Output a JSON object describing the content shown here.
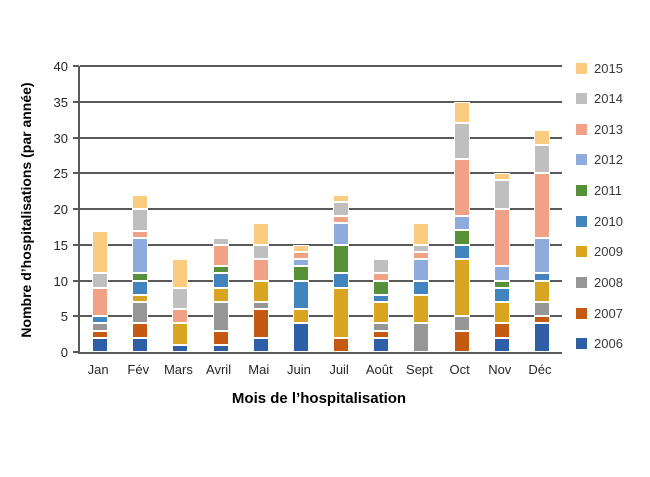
{
  "chart_data": {
    "type": "bar",
    "stacked": true,
    "title": "",
    "xlabel": "Mois de l’hospitalisation",
    "ylabel": "Nombre d’hospitalisations (par année)",
    "ylim": [
      0,
      40
    ],
    "yticks": [
      0,
      5,
      10,
      15,
      20,
      25,
      30,
      35,
      40
    ],
    "grid": true,
    "legend_position": "right",
    "legend_order": "last-series-first",
    "categories": [
      "Jan",
      "Fév",
      "Mars",
      "Avril",
      "Mai",
      "Juin",
      "Juil",
      "Août",
      "Sept",
      "Oct",
      "Nov",
      "Déc"
    ],
    "series": [
      {
        "name": "2006",
        "color": "#2E5EA6",
        "values": [
          2,
          2,
          1,
          1,
          2,
          4,
          0,
          2,
          0,
          0,
          2,
          4
        ]
      },
      {
        "name": "2007",
        "color": "#C45911",
        "values": [
          1,
          2,
          0,
          2,
          4,
          0,
          2,
          1,
          0,
          3,
          2,
          1
        ]
      },
      {
        "name": "2008",
        "color": "#969696",
        "values": [
          1,
          3,
          0,
          4,
          1,
          0,
          0,
          1,
          4,
          2,
          0,
          2
        ]
      },
      {
        "name": "2009",
        "color": "#D9A521",
        "values": [
          0,
          1,
          3,
          2,
          3,
          2,
          7,
          3,
          4,
          8,
          3,
          3
        ]
      },
      {
        "name": "2010",
        "color": "#4285BE",
        "values": [
          1,
          2,
          0,
          2,
          0,
          4,
          2,
          1,
          2,
          2,
          2,
          1
        ]
      },
      {
        "name": "2011",
        "color": "#569038",
        "values": [
          0,
          1,
          0,
          1,
          0,
          2,
          4,
          2,
          0,
          2,
          1,
          0
        ]
      },
      {
        "name": "2012",
        "color": "#8FAADC",
        "values": [
          0,
          5,
          0,
          0,
          0,
          1,
          3,
          0,
          3,
          2,
          2,
          5
        ]
      },
      {
        "name": "2013",
        "color": "#F1A286",
        "values": [
          4,
          1,
          2,
          3,
          3,
          1,
          1,
          1,
          1,
          8,
          8,
          9
        ]
      },
      {
        "name": "2014",
        "color": "#BFBFBF",
        "values": [
          2,
          3,
          3,
          1,
          2,
          0,
          2,
          2,
          1,
          5,
          4,
          4
        ]
      },
      {
        "name": "2015",
        "color": "#FBCB7F",
        "values": [
          6,
          2,
          4,
          0,
          3,
          1,
          1,
          0,
          3,
          3,
          1,
          2
        ]
      }
    ],
    "colors": {
      "gridline": "#595959",
      "axis": "#595959",
      "tick_text": "#262626",
      "title_text": "#000000"
    }
  }
}
